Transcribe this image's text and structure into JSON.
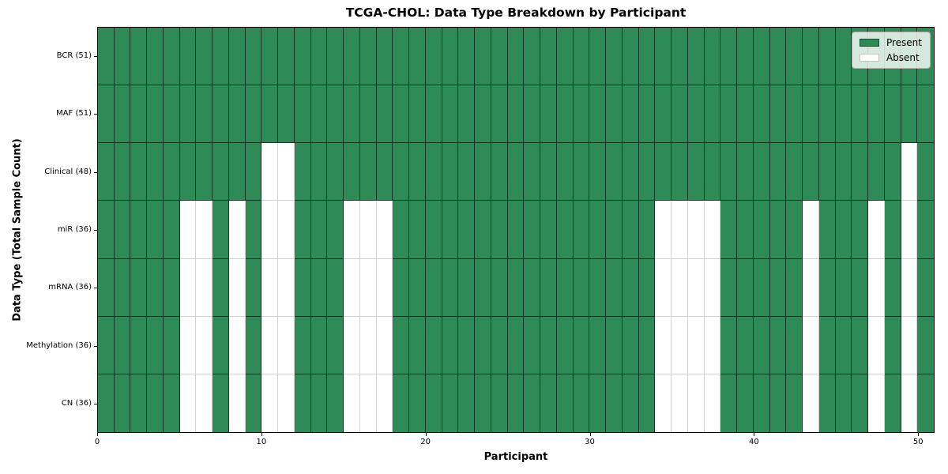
{
  "title": "TCGA-CHOL: Data Type Breakdown by Participant",
  "chart_data": {
    "type": "heatmap",
    "title": "TCGA-CHOL: Data Type Breakdown by Participant",
    "xlabel": "Participant",
    "ylabel": "Data Type (Total Sample Count)",
    "x_ticks": [
      0,
      10,
      20,
      30,
      40,
      50
    ],
    "x_range": [
      0,
      51
    ],
    "n_participants": 51,
    "cell_states": [
      "Present",
      "Absent"
    ],
    "legend": {
      "position": "upper right",
      "entries": [
        {
          "label": "Present",
          "color": "#2e8b57"
        },
        {
          "label": "Absent",
          "color": "#ffffff"
        }
      ]
    },
    "rows": [
      {
        "label": "BCR (51)",
        "data_type": "BCR",
        "total_samples": 51,
        "absent_participants": []
      },
      {
        "label": "MAF (51)",
        "data_type": "MAF",
        "total_samples": 51,
        "absent_participants": []
      },
      {
        "label": "Clinical (48)",
        "data_type": "Clinical",
        "total_samples": 48,
        "absent_participants": [
          10,
          11,
          49
        ]
      },
      {
        "label": "miR (36)",
        "data_type": "miR",
        "total_samples": 36,
        "absent_participants": [
          5,
          6,
          8,
          10,
          11,
          15,
          16,
          17,
          34,
          35,
          36,
          37,
          43,
          47,
          49
        ]
      },
      {
        "label": "mRNA (36)",
        "data_type": "mRNA",
        "total_samples": 36,
        "absent_participants": [
          5,
          6,
          8,
          10,
          11,
          15,
          16,
          17,
          34,
          35,
          36,
          37,
          43,
          47,
          49
        ]
      },
      {
        "label": "Methylation (36)",
        "data_type": "Methylation",
        "total_samples": 36,
        "absent_participants": [
          5,
          6,
          8,
          10,
          11,
          15,
          16,
          17,
          34,
          35,
          36,
          37,
          43,
          47,
          49
        ]
      },
      {
        "label": "CN (36)",
        "data_type": "CN",
        "total_samples": 36,
        "absent_participants": [
          5,
          6,
          8,
          10,
          11,
          15,
          16,
          17,
          34,
          35,
          36,
          37,
          43,
          47,
          49
        ]
      }
    ]
  },
  "colors": {
    "present": "#2e8b57",
    "absent": "#ffffff",
    "present_edge": "rgba(0,0,0,0.62)",
    "absent_edge": "rgba(0,0,0,0.18)",
    "spine": "#000000",
    "legend_bg": "rgba(255,255,255,0.8)",
    "legend_border": "#b0b0b0",
    "background": "#ffffff"
  }
}
